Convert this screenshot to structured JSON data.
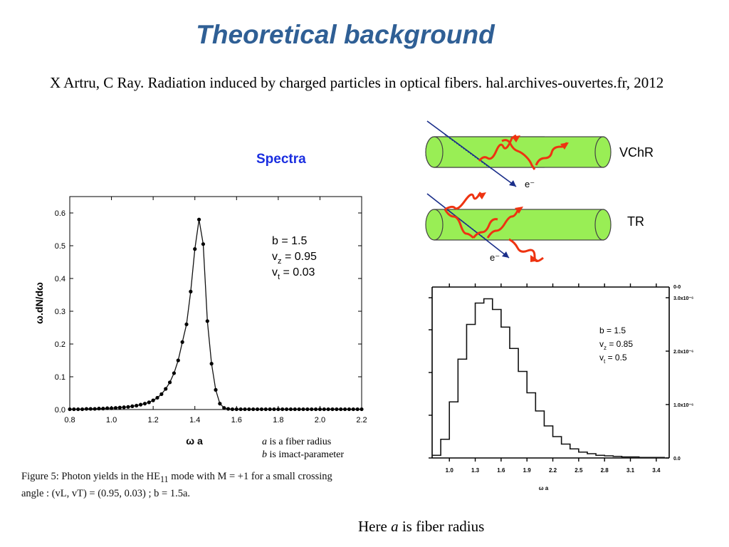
{
  "slide": {
    "title": "Theoretical background",
    "reference": "X Artru, C Ray. Radiation induced by charged particles in optical fibers.  hal.archives-ouvertes.fr, 2012",
    "section_heading": "Spectra",
    "footer_note": {
      "pre": "Here ",
      "var": "a",
      "post": " is fiber radius"
    },
    "notes": [
      {
        "var": "a",
        "text": " is a fiber radius"
      },
      {
        "var": "b",
        "text": " is imact-parameter"
      }
    ],
    "caption": {
      "line1": "Figure 5:  Photon yields in the HE",
      "sub": "11",
      "line1_rest": " mode with M = +1 for a small crossing",
      "line2": "angle : (v",
      "line2_full": "angle : (vL, vT) = (0.95, 0.03) ; b = 1.5a."
    }
  },
  "diagrams": {
    "vchr_label": "VChR",
    "tr_label": "TR",
    "electron_label": "e⁻",
    "colors": {
      "fiber": "#99ee55",
      "photon": "#ee3311",
      "electron": "#1a2e8a"
    }
  },
  "chart_data": [
    {
      "type": "line",
      "title": "",
      "xlabel": "ω a",
      "ylabel": "ω.dN/dω",
      "xlim": [
        0.8,
        2.2
      ],
      "ylim": [
        0.0,
        0.65
      ],
      "xticks": [
        "0.8",
        "1.0",
        "1.2",
        "1.4",
        "1.6",
        "1.8",
        "2.0",
        "2.2"
      ],
      "yticks": [
        "0.0",
        "0.1",
        "0.2",
        "0.3",
        "0.4",
        "0.5",
        "0.6"
      ],
      "annotations": [
        {
          "main": "b = 1.5",
          "sub": ""
        },
        {
          "main": "v",
          "sub": "z",
          "rest": " = 0.95"
        },
        {
          "main": "v",
          "sub": "t",
          "rest": " = 0.03"
        }
      ],
      "x": [
        0.8,
        0.82,
        0.84,
        0.86,
        0.88,
        0.9,
        0.92,
        0.94,
        0.96,
        0.98,
        1.0,
        1.02,
        1.04,
        1.06,
        1.08,
        1.1,
        1.12,
        1.14,
        1.16,
        1.18,
        1.2,
        1.22,
        1.24,
        1.26,
        1.28,
        1.3,
        1.32,
        1.34,
        1.36,
        1.38,
        1.4,
        1.42,
        1.44,
        1.46,
        1.48,
        1.5,
        1.52,
        1.54,
        1.56,
        1.58,
        1.6,
        1.62,
        1.64,
        1.66,
        1.68,
        1.7,
        1.72,
        1.74,
        1.76,
        1.78,
        1.8,
        1.82,
        1.84,
        1.86,
        1.88,
        1.9,
        1.92,
        1.94,
        1.96,
        1.98,
        2.0,
        2.02,
        2.04,
        2.06,
        2.08,
        2.1,
        2.12,
        2.14,
        2.16,
        2.18,
        2.2
      ],
      "y": [
        0.001,
        0.001,
        0.001,
        0.001,
        0.002,
        0.002,
        0.002,
        0.003,
        0.003,
        0.004,
        0.004,
        0.005,
        0.006,
        0.007,
        0.008,
        0.01,
        0.012,
        0.015,
        0.018,
        0.022,
        0.028,
        0.036,
        0.047,
        0.063,
        0.083,
        0.111,
        0.15,
        0.206,
        0.26,
        0.36,
        0.49,
        0.58,
        0.505,
        0.27,
        0.14,
        0.06,
        0.018,
        0.005,
        0.002,
        0.001,
        0.001,
        0.001,
        0.001,
        0.001,
        0.001,
        0.001,
        0.001,
        0.001,
        0.001,
        0.001,
        0.001,
        0.001,
        0.001,
        0.001,
        0.001,
        0.001,
        0.001,
        0.001,
        0.001,
        0.001,
        0.001,
        0.001,
        0.001,
        0.001,
        0.001,
        0.001,
        0.001,
        0.001,
        0.001,
        0.001,
        0.001
      ]
    },
    {
      "type": "line",
      "title": "",
      "xlabel": "ω a",
      "ylabel": "",
      "xlim": [
        0.8,
        3.55
      ],
      "ylim": [
        0.0,
        3.2e-06
      ],
      "xticks": [
        "1.0",
        "1.3",
        "1.6",
        "1.9",
        "2.2",
        "2.5",
        "2.8",
        "3.1",
        "3.4"
      ],
      "yticks_right": [
        "0.0",
        "1.0x10⁻⁶",
        "2.0x10⁻⁶",
        "3.0x10⁻⁶"
      ],
      "top_right_label": "0-0",
      "annotations": [
        {
          "main": "b = 1.5",
          "sub": ""
        },
        {
          "main": "v",
          "sub": "z",
          "rest": " = 0.85"
        },
        {
          "main": "v",
          "sub": "t",
          "rest": " = 0.5"
        }
      ],
      "x": [
        0.8,
        0.9,
        1.0,
        1.1,
        1.2,
        1.3,
        1.4,
        1.5,
        1.6,
        1.7,
        1.8,
        1.9,
        2.0,
        2.1,
        2.2,
        2.3,
        2.4,
        2.5,
        2.6,
        2.7,
        2.8,
        2.9,
        3.0,
        3.1,
        3.2,
        3.3,
        3.4,
        3.5
      ],
      "y": [
        5e-08,
        3.5e-07,
        1.05e-06,
        1.85e-06,
        2.5e-06,
        2.9e-06,
        2.98e-06,
        2.78e-06,
        2.45e-06,
        2.05e-06,
        1.62e-06,
        1.22e-06,
        8.8e-07,
        6e-07,
        4e-07,
        2.6e-07,
        1.7e-07,
        1.1e-07,
        8e-08,
        5e-08,
        4e-08,
        3e-08,
        2e-08,
        2e-08,
        1e-08,
        1e-08,
        1e-08,
        1e-08
      ]
    }
  ]
}
